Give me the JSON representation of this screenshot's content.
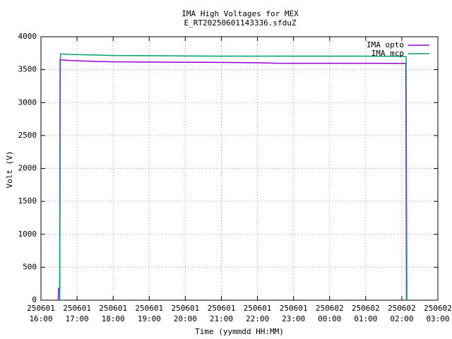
{
  "chart_data": {
    "type": "line",
    "title": "IMA High Voltages for MEX",
    "subtitle": "E_RT20250601143336.sfduZ",
    "x_label": "Time (yymmdd HH:MM)",
    "y_label": "Volt (V)",
    "xlim": [
      16,
      27
    ],
    "xticks": [
      {
        "value": 16,
        "label": [
          "250601",
          "16:00"
        ]
      },
      {
        "value": 17,
        "label": [
          "250601",
          "17:00"
        ]
      },
      {
        "value": 18,
        "label": [
          "250601",
          "18:00"
        ]
      },
      {
        "value": 19,
        "label": [
          "250601",
          "19:00"
        ]
      },
      {
        "value": 20,
        "label": [
          "250601",
          "20:00"
        ]
      },
      {
        "value": 21,
        "label": [
          "250601",
          "21:00"
        ]
      },
      {
        "value": 22,
        "label": [
          "250601",
          "22:00"
        ]
      },
      {
        "value": 23,
        "label": [
          "250601",
          "23:00"
        ]
      },
      {
        "value": 24,
        "label": [
          "250602",
          "00:00"
        ]
      },
      {
        "value": 25,
        "label": [
          "250602",
          "01:00"
        ]
      },
      {
        "value": 26,
        "label": [
          "250602",
          "02:00"
        ]
      },
      {
        "value": 27,
        "label": [
          "250602",
          "03:00"
        ]
      }
    ],
    "ylim": [
      0,
      4000
    ],
    "yticks": [
      0,
      500,
      1000,
      1500,
      2000,
      2500,
      3000,
      3500,
      4000
    ],
    "grid": true,
    "legend": "top-right",
    "series": [
      {
        "name": "IMA opto",
        "color": "#9400d3",
        "x": [
          16.48,
          16.49,
          16.52,
          16.53,
          16.8,
          17.5,
          18,
          19,
          20,
          21,
          22,
          22.5,
          23,
          24,
          25,
          26,
          26.11,
          26.13
        ],
        "values": [
          0,
          180,
          180,
          3650,
          3640,
          3625,
          3620,
          3615,
          3612,
          3610,
          3605,
          3598,
          3597,
          3596,
          3596,
          3595,
          3595,
          0
        ]
      },
      {
        "name": "IMA mcp",
        "color": "#009e73",
        "x": [
          16.52,
          16.54,
          16.8,
          17.5,
          18,
          19,
          20,
          21,
          22,
          23,
          24,
          25,
          26,
          26.1,
          26.12,
          26.14
        ],
        "values": [
          0,
          3740,
          3730,
          3722,
          3715,
          3712,
          3708,
          3705,
          3705,
          3705,
          3705,
          3705,
          3702,
          3700,
          3690,
          0
        ]
      }
    ]
  }
}
